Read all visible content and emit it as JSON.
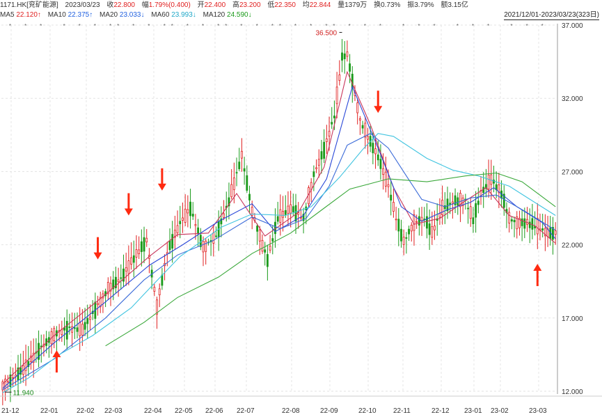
{
  "header": {
    "code": "1171.HK[兖矿能源]",
    "date": "2023/03/23",
    "close_label": "收",
    "close": "22.800",
    "amp_label": "幅",
    "amp": "1.79%(0.400)",
    "open_label": "开",
    "open": "22.400",
    "high_label": "高",
    "high": "23.200",
    "low_label": "低",
    "low": "22.350",
    "avg_label": "均",
    "avg": "22.844",
    "vol_label": "量",
    "vol": "1379万",
    "turnover_label": "换",
    "turnover": "0.73%",
    "swing_label": "振",
    "swing": "3.79%",
    "amount_label": "额",
    "amount": "3.15亿"
  },
  "ma_bar": {
    "ma5_label": "MA5",
    "ma5": "22.120↑",
    "ma10_label": "MA10",
    "ma10": "22.375↑",
    "ma20_label": "MA20",
    "ma20": "23.033↓",
    "ma60_label": "MA60",
    "ma60": "23.993↓",
    "ma120_label": "MA120",
    "ma120": "24.590↓",
    "range": "2021/12/01-2023/03/23(323日)"
  },
  "colors": {
    "up": "#e02020",
    "down": "#1a9a1a",
    "ma5": "#d04060",
    "ma10": "#2040d0",
    "ma20": "#30c0e0",
    "ma60": "#30b030",
    "grid": "#dddddd",
    "arrow": "#ff2a10"
  },
  "chart_data": {
    "type": "candlestick",
    "ylim": [
      12,
      37
    ],
    "y_ticks": [
      "37.000",
      "32.000",
      "27.000",
      "22.000",
      "17.000",
      "12.000"
    ],
    "x_ticks": [
      "21-12",
      "22-01",
      "22-02",
      "22-03",
      "22-04",
      "22-05",
      "22-06",
      "22-07",
      "22-08",
      "22-09",
      "22-10",
      "22-11",
      "22-12",
      "23-01",
      "23-02",
      "23-03"
    ],
    "high_marker": "36.500",
    "low_marker": "11.940",
    "price_path": [
      [
        0,
        12.3
      ],
      [
        8,
        13.5
      ],
      [
        15,
        15.0
      ],
      [
        21,
        16.0
      ],
      [
        26,
        16.3
      ],
      [
        31,
        16.2
      ],
      [
        36,
        17.6
      ],
      [
        41,
        19.0
      ],
      [
        46,
        19.7
      ],
      [
        51,
        21.1
      ],
      [
        56,
        22.3
      ],
      [
        60,
        17.8
      ],
      [
        64,
        21.5
      ],
      [
        69,
        23.5
      ],
      [
        73,
        24.5
      ],
      [
        78,
        21.8
      ],
      [
        83,
        22.6
      ],
      [
        88,
        25.0
      ],
      [
        93,
        28.1
      ],
      [
        97,
        24.3
      ],
      [
        101,
        22.0
      ],
      [
        103,
        21.0
      ],
      [
        107,
        23.8
      ],
      [
        112,
        24.5
      ],
      [
        117,
        23.8
      ],
      [
        121,
        26.8
      ],
      [
        125,
        28.5
      ],
      [
        129,
        30.8
      ],
      [
        132,
        34.8
      ],
      [
        134,
        35.0
      ],
      [
        139,
        30.5
      ],
      [
        143,
        29.0
      ],
      [
        146,
        28.0
      ],
      [
        150,
        26.0
      ],
      [
        153,
        23.8
      ],
      [
        156,
        22.2
      ],
      [
        160,
        23.5
      ],
      [
        164,
        23.8
      ],
      [
        167,
        22.8
      ],
      [
        171,
        24.5
      ],
      [
        176,
        25.0
      ],
      [
        180,
        25.0
      ],
      [
        183,
        23.7
      ],
      [
        186,
        25.5
      ],
      [
        190,
        26.5
      ],
      [
        194,
        25.5
      ],
      [
        197,
        23.8
      ],
      [
        200,
        23.5
      ],
      [
        204,
        23.5
      ],
      [
        208,
        23.2
      ],
      [
        212,
        22.8
      ],
      [
        215,
        22.8
      ]
    ],
    "ma_series": [
      {
        "name": "MA5",
        "values": [
          [
            0,
            12.5
          ],
          [
            20,
            15.8
          ],
          [
            40,
            18.6
          ],
          [
            57,
            21.2
          ],
          [
            68,
            22.7
          ],
          [
            80,
            22.8
          ],
          [
            91,
            25.5
          ],
          [
            102,
            22.6
          ],
          [
            115,
            24.2
          ],
          [
            125,
            27.3
          ],
          [
            134,
            33.8
          ],
          [
            143,
            30.2
          ],
          [
            152,
            25.9
          ],
          [
            160,
            23.4
          ],
          [
            170,
            23.8
          ],
          [
            180,
            25.0
          ],
          [
            188,
            25.9
          ],
          [
            197,
            24.0
          ],
          [
            207,
            23.3
          ],
          [
            215,
            22.1
          ]
        ]
      },
      {
        "name": "MA10",
        "values": [
          [
            0,
            12.2
          ],
          [
            20,
            15.3
          ],
          [
            40,
            18.1
          ],
          [
            57,
            20.6
          ],
          [
            70,
            22.0
          ],
          [
            84,
            23.6
          ],
          [
            97,
            24.8
          ],
          [
            106,
            22.9
          ],
          [
            117,
            24.0
          ],
          [
            126,
            26.5
          ],
          [
            136,
            32.8
          ],
          [
            146,
            28.6
          ],
          [
            155,
            24.6
          ],
          [
            163,
            23.6
          ],
          [
            173,
            24.4
          ],
          [
            182,
            24.9
          ],
          [
            191,
            25.9
          ],
          [
            200,
            24.6
          ],
          [
            210,
            23.5
          ],
          [
            215,
            22.4
          ]
        ]
      },
      {
        "name": "MA20",
        "values": [
          [
            0,
            12.1
          ],
          [
            20,
            14.2
          ],
          [
            40,
            17.0
          ],
          [
            55,
            19.6
          ],
          [
            68,
            21.3
          ],
          [
            82,
            22.3
          ],
          [
            97,
            23.9
          ],
          [
            108,
            23.1
          ],
          [
            118,
            23.8
          ],
          [
            127,
            26.0
          ],
          [
            134,
            28.8
          ],
          [
            143,
            29.6
          ],
          [
            150,
            28.6
          ],
          [
            157,
            26.7
          ],
          [
            163,
            25.1
          ],
          [
            172,
            24.6
          ],
          [
            182,
            25.2
          ],
          [
            192,
            25.4
          ],
          [
            203,
            24.3
          ],
          [
            215,
            23.0
          ]
        ]
      },
      {
        "name": "MA60",
        "values": [
          [
            0,
            11.9
          ],
          [
            10,
            12.9
          ],
          [
            22,
            14.5
          ],
          [
            35,
            15.8
          ],
          [
            50,
            17.7
          ],
          [
            57,
            19.0
          ],
          [
            69,
            21.2
          ],
          [
            85,
            23.2
          ],
          [
            97,
            24.1
          ],
          [
            110,
            24.0
          ],
          [
            120,
            24.6
          ],
          [
            131,
            26.6
          ],
          [
            140,
            28.5
          ],
          [
            146,
            29.6
          ],
          [
            152,
            29.4
          ],
          [
            165,
            27.9
          ],
          [
            175,
            27.1
          ],
          [
            185,
            26.7
          ],
          [
            197,
            26.0
          ],
          [
            206,
            25.0
          ],
          [
            215,
            24.0
          ]
        ]
      },
      {
        "name": "MA120",
        "values": [
          [
            40,
            15.1
          ],
          [
            55,
            16.7
          ],
          [
            68,
            18.4
          ],
          [
            84,
            19.8
          ],
          [
            97,
            21.4
          ],
          [
            112,
            22.8
          ],
          [
            125,
            24.5
          ],
          [
            135,
            25.8
          ],
          [
            150,
            26.5
          ],
          [
            165,
            26.3
          ],
          [
            180,
            26.7
          ],
          [
            192,
            26.9
          ],
          [
            202,
            26.3
          ],
          [
            215,
            24.6
          ]
        ]
      }
    ],
    "arrows": [
      {
        "dir": "up",
        "bar": 21,
        "value": 14.8
      },
      {
        "dir": "down",
        "bar": 37,
        "value": 21.0
      },
      {
        "dir": "down",
        "bar": 49,
        "value": 24.0
      },
      {
        "dir": "down",
        "bar": 62,
        "value": 25.7
      },
      {
        "dir": "down",
        "bar": 146,
        "value": 31.0
      },
      {
        "dir": "up",
        "bar": 208,
        "value": 20.7
      }
    ]
  }
}
